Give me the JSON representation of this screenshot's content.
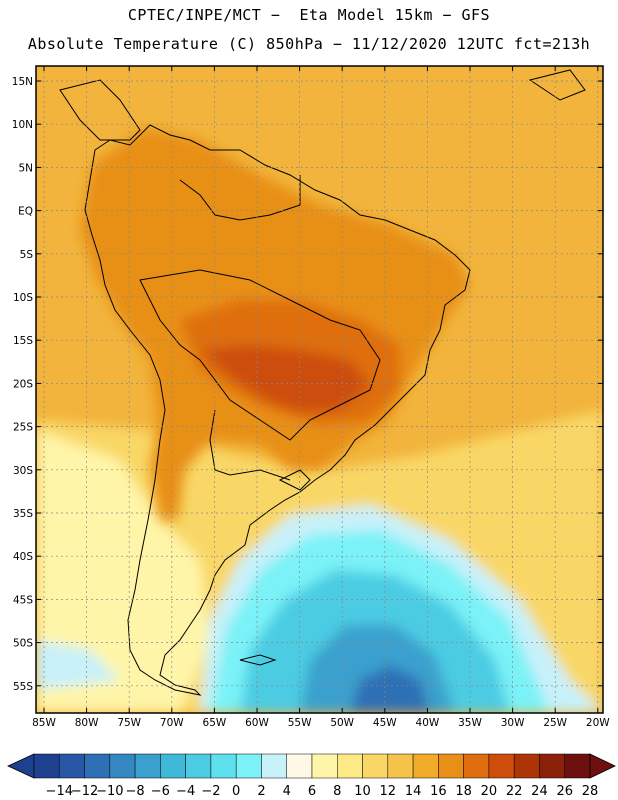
{
  "title": {
    "line1": "CPTEC/INPE/MCT −  Eta Model 15km − GFS",
    "line2": "Absolute Temperature (C) 850hPa − 11/12/2020 12UTC fct=213h"
  },
  "axes": {
    "lat_labels": [
      "15N",
      "10N",
      "5N",
      "EQ",
      "5S",
      "10S",
      "15S",
      "20S",
      "25S",
      "30S",
      "35S",
      "40S",
      "45S",
      "50S",
      "55S"
    ],
    "lon_labels": [
      "85W",
      "80W",
      "75W",
      "70W",
      "65W",
      "60W",
      "55W",
      "50W",
      "45W",
      "40W",
      "35W",
      "30W",
      "25W",
      "20W"
    ]
  },
  "colorbar": {
    "labels": [
      "−14",
      "−12",
      "−10",
      "−8",
      "−6",
      "−4",
      "−2",
      "0",
      "2",
      "4",
      "6",
      "8",
      "10",
      "12",
      "14",
      "16",
      "18",
      "20",
      "22",
      "24",
      "26",
      "28"
    ],
    "colors": [
      "#1f3f8f",
      "#2a56a6",
      "#2f6fb5",
      "#3587c2",
      "#3aa0cd",
      "#40b8d8",
      "#4bcce3",
      "#5fe0ee",
      "#7af2f7",
      "#c8f1fa",
      "#fff8e6",
      "#fff5a8",
      "#fde985",
      "#f9d766",
      "#f5c24a",
      "#f0ab2a",
      "#e88f18",
      "#df6e0e",
      "#cc4e0a",
      "#ad3407",
      "#8c2109",
      "#6e1010"
    ],
    "under_color": "#1f3f8f",
    "over_color": "#6e1010"
  },
  "map_colors": {
    "ocean_tropics": "#f2b43c",
    "land_hot": "#e88f18",
    "land_core": "#df6e0e",
    "land_peak": "#cc4e0a",
    "mid_lat": "#f9d766",
    "cool": "#fff5a8",
    "cold1": "#c8f1fa",
    "cold2": "#7af2f7",
    "cold3": "#4bcce3",
    "cold4": "#3aa0cd",
    "cold5": "#2f6fb5"
  }
}
